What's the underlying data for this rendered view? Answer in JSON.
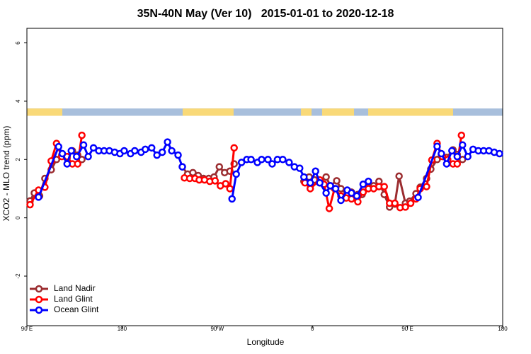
{
  "chart_data": {
    "type": "line",
    "title": "35N-40N May (Ver 10)   2015-01-01 to 2020-12-18",
    "x_label": "Longitude",
    "y_label": "XCO2 - MLO trend (ppm)",
    "xlim": [
      90,
      540
    ],
    "ylim": [
      -3.7,
      6.5
    ],
    "xticks": [
      {
        "value": 90,
        "label": "90 E"
      },
      {
        "value": 180,
        "label": "180"
      },
      {
        "value": 270,
        "label": "90 W"
      },
      {
        "value": 360,
        "label": "0"
      },
      {
        "value": 450,
        "label": "90 E"
      },
      {
        "value": 540,
        "label": "180"
      }
    ],
    "yticks": [
      -2,
      0,
      2,
      4,
      6
    ],
    "legend": "lower left",
    "band_ylim": [
      3.5,
      3.75
    ],
    "ocean_color": "#a8bfdc",
    "land_color": "#f9d978",
    "land_segments": [
      [
        90,
        123.5
      ],
      [
        237.3,
        285.5
      ],
      [
        349.2,
        359.2
      ],
      [
        369.2,
        399.4
      ],
      [
        412.8,
        493.1
      ]
    ],
    "series": [
      {
        "name": "Land Nadir",
        "color": "#9b2d30",
        "x": [
          93,
          97,
          102,
          107,
          113,
          118,
          123,
          128,
          133,
          138,
          142,
          null,
          237,
          242,
          247,
          252,
          257,
          262,
          267,
          272,
          277,
          282,
          286,
          null,
          352,
          357,
          362,
          367,
          373,
          377,
          383,
          387,
          393,
          397,
          403,
          407,
          413,
          418,
          423,
          428,
          433,
          438,
          442,
          448,
          452,
          458,
          462,
          468,
          472,
          478,
          482,
          487,
          493,
          497,
          502
        ],
        "values": [
          0.58,
          0.85,
          0.75,
          1.35,
          1.65,
          2.0,
          2.15,
          2.05,
          2.3,
          2.15,
          2.0,
          null,
          1.75,
          1.5,
          1.55,
          1.45,
          1.35,
          1.35,
          1.4,
          1.75,
          1.55,
          1.6,
          1.85,
          null,
          1.25,
          1.4,
          1.3,
          1.2,
          1.4,
          1.1,
          1.27,
          1.0,
          0.78,
          0.88,
          0.8,
          0.8,
          1.05,
          1.1,
          1.25,
          0.8,
          0.37,
          0.47,
          1.43,
          0.5,
          0.57,
          0.83,
          1.05,
          1.35,
          1.67,
          2.0,
          2.17,
          2.07,
          2.33,
          2.17,
          2.0
        ]
      },
      {
        "name": "Land Glint",
        "color": "#ff0000",
        "x": [
          93,
          101,
          107,
          113,
          118,
          123,
          128,
          133,
          138,
          142,
          null,
          239,
          244,
          249,
          253,
          258,
          263,
          268,
          273,
          278,
          282,
          286,
          null,
          353,
          358,
          367,
          371,
          376,
          381,
          387,
          392,
          397,
          403,
          408,
          413,
          418,
          423,
          428,
          433,
          438,
          443,
          448,
          453,
          458,
          462,
          468,
          473,
          478,
          483,
          488,
          493,
          497,
          501
        ],
        "values": [
          0.45,
          0.95,
          1.05,
          1.95,
          2.55,
          2.1,
          2.1,
          1.85,
          1.85,
          2.83,
          null,
          1.37,
          1.35,
          1.35,
          1.3,
          1.3,
          1.25,
          1.27,
          1.1,
          1.17,
          1.0,
          2.4,
          null,
          1.2,
          1.0,
          1.3,
          1.15,
          0.32,
          1.0,
          0.75,
          0.68,
          0.65,
          0.55,
          0.88,
          1.0,
          1.0,
          1.07,
          1.07,
          0.5,
          0.5,
          0.35,
          0.37,
          0.5,
          0.65,
          1.0,
          1.07,
          1.98,
          2.55,
          2.1,
          2.0,
          1.85,
          1.85,
          2.83
        ]
      },
      {
        "name": "Ocean Glint",
        "color": "#0000ff",
        "x": [
          101,
          120,
          123.5,
          128,
          132,
          137,
          143.6,
          148,
          153,
          158,
          163,
          168,
          173,
          178,
          182,
          188,
          192,
          198,
          202,
          208,
          213,
          218,
          223,
          227,
          233,
          237,
          null,
          284,
          288,
          293,
          298,
          302,
          308,
          312,
          318,
          322,
          327,
          332,
          338,
          343,
          348,
          352,
          358,
          363,
          367,
          373,
          377,
          382,
          387,
          393,
          397,
          402,
          408,
          413,
          null,
          460,
          478,
          482,
          487,
          492,
          497,
          502,
          507,
          512,
          517,
          522,
          527,
          532,
          537
        ],
        "values": [
          0.71,
          2.44,
          2.2,
          1.85,
          2.3,
          2.1,
          2.5,
          2.1,
          2.4,
          2.3,
          2.3,
          2.3,
          2.25,
          2.2,
          2.3,
          2.2,
          2.3,
          2.25,
          2.35,
          2.4,
          2.15,
          2.25,
          2.6,
          2.3,
          2.15,
          1.75,
          null,
          0.65,
          1.5,
          1.9,
          2.0,
          2.0,
          1.9,
          2.0,
          2.0,
          1.85,
          2.0,
          2.0,
          1.9,
          1.75,
          1.7,
          1.4,
          1.2,
          1.6,
          1.2,
          0.85,
          1.1,
          1.0,
          0.6,
          0.95,
          0.85,
          0.75,
          1.15,
          1.25,
          null,
          0.7,
          2.45,
          2.2,
          1.85,
          2.3,
          2.1,
          2.5,
          2.1,
          2.35,
          2.3,
          2.3,
          2.3,
          2.25,
          2.2
        ]
      }
    ]
  }
}
